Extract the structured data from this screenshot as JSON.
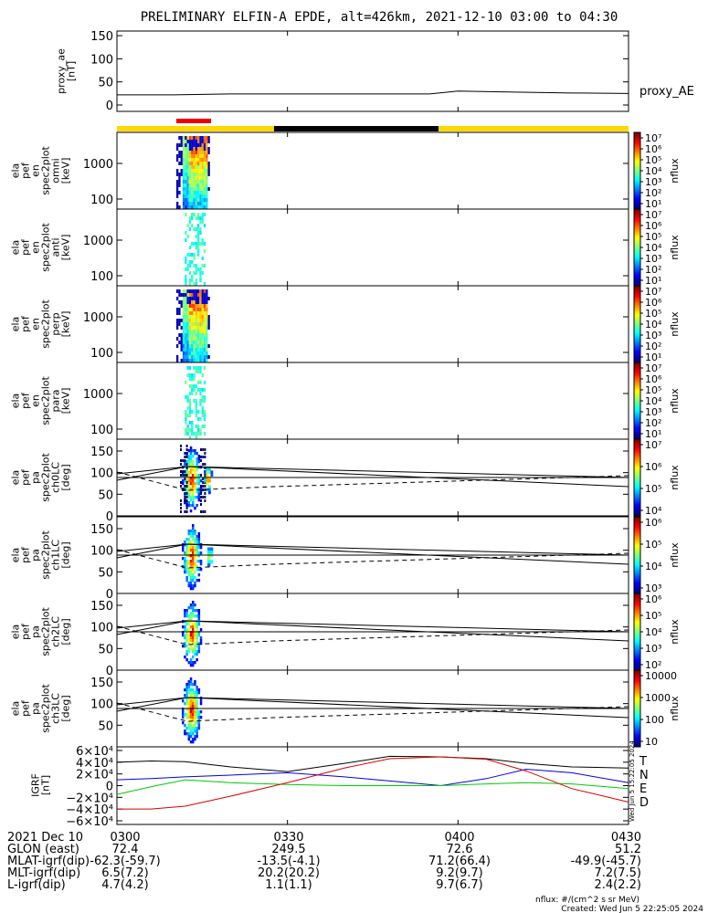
{
  "title": "PRELIMINARY ELFIN-A EPDE, alt=426km, 2021-12-10 03:00 to 04:30",
  "colors": {
    "bar_yellow": "#ffd800",
    "bar_black": "#000000",
    "bar_red": "#ee0000",
    "grf_T": "#000000",
    "grf_N": "#0000dd",
    "grf_E": "#00cc00",
    "grf_D": "#dd0000"
  },
  "ae_panel": {
    "ylabel_lines": [
      "proxy_ae",
      "[nT]"
    ],
    "yticks": [
      "150",
      "100",
      "50",
      "0"
    ],
    "series_label": "proxy_AE"
  },
  "spec_panels": [
    {
      "ylabel_lines": [
        "ela",
        "pef",
        "en",
        "spec2plot",
        "omni",
        "[keV]"
      ],
      "yticks": [
        "1000",
        "100"
      ]
    },
    {
      "ylabel_lines": [
        "ela",
        "pef",
        "en",
        "spec2plot",
        "anti",
        "[keV]"
      ],
      "yticks": [
        "1000",
        "100"
      ]
    },
    {
      "ylabel_lines": [
        "ela",
        "pef",
        "en",
        "spec2plot",
        "perp",
        "[keV]"
      ],
      "yticks": [
        "1000",
        "100"
      ]
    },
    {
      "ylabel_lines": [
        "ela",
        "pef",
        "en",
        "spec2plot",
        "para",
        "[keV]"
      ],
      "yticks": [
        "1000",
        "100"
      ]
    }
  ],
  "pa_panels": [
    {
      "ylabel_lines": [
        "ela",
        "pef",
        "pa",
        "spec2plot",
        "ch0LC",
        "[deg]"
      ],
      "yticks": [
        "150",
        "100",
        "50",
        "0"
      ]
    },
    {
      "ylabel_lines": [
        "ela",
        "pef",
        "pa",
        "spec2plot",
        "ch1LC",
        "[deg]"
      ],
      "yticks": [
        "150",
        "100",
        "50",
        "0"
      ]
    },
    {
      "ylabel_lines": [
        "ela",
        "pef",
        "pa",
        "spec2plot",
        "ch2LC",
        "[deg]"
      ],
      "yticks": [
        "150",
        "100",
        "50",
        "0"
      ]
    },
    {
      "ylabel_lines": [
        "ela",
        "pef",
        "pa",
        "spec2plot",
        "ch3LC",
        "[deg]"
      ],
      "yticks": [
        "150",
        "100",
        "50"
      ]
    }
  ],
  "colorbars": [
    {
      "label": "nflux",
      "ticks": [
        "10⁷",
        "10⁶",
        "10⁵",
        "10⁴",
        "10³",
        "10²",
        "10¹"
      ]
    },
    {
      "label": "nflux",
      "ticks": [
        "10⁷",
        "10⁶",
        "10⁵",
        "10⁴",
        "10³",
        "10²",
        "10¹"
      ]
    },
    {
      "label": "nflux",
      "ticks": [
        "10⁷",
        "10⁶",
        "10⁵",
        "10⁴",
        "10³",
        "10²",
        "10¹"
      ]
    },
    {
      "label": "nflux",
      "ticks": [
        "10⁷",
        "10⁶",
        "10⁵",
        "10⁴",
        "10³",
        "10²",
        "10¹"
      ]
    },
    {
      "label": "nflux",
      "ticks": [
        "10⁷",
        "10⁶",
        "10⁵",
        "10⁴"
      ]
    },
    {
      "label": "nflux",
      "ticks": [
        "10⁶",
        "10⁵",
        "10⁴",
        "10³"
      ]
    },
    {
      "label": "nflux",
      "ticks": [
        "10⁶",
        "10⁵",
        "10⁴",
        "10³",
        "10²"
      ]
    },
    {
      "label": "nflux",
      "ticks": [
        "10000",
        "1000",
        "100",
        "10"
      ]
    }
  ],
  "grf_panel": {
    "ylabel_lines": [
      "IGRF",
      "[nT]"
    ],
    "yticks": [
      "6×10⁴",
      "4×10⁴",
      "2×10⁴",
      "0",
      "−2×10⁴",
      "−4×10⁴",
      "−6×10⁴"
    ],
    "legend": [
      "T",
      "N",
      "E",
      "D"
    ],
    "side_note": "Wed Jun 5 15:22:05 2024"
  },
  "footer": {
    "rows": [
      [
        "2021 Dec 10",
        "0300",
        "0330",
        "0400",
        "0430"
      ],
      [
        "GLON (east)",
        "72.4",
        "249.5",
        "72.6",
        "51.2"
      ],
      [
        "MLAT-igrf(dip)",
        "-62.3(-59.7)",
        "-13.5(-4.1)",
        "71.2(66.4)",
        "-49.9(-45.7)"
      ],
      [
        "MLT-igrf(dip)",
        "6.5(7.2)",
        "20.2(20.2)",
        "9.2(9.7)",
        "7.2(7.5)"
      ],
      [
        "L-igrf(dip)",
        "4.7(4.2)",
        "1.1(1.1)",
        "9.7(6.7)",
        "2.4(2.2)"
      ]
    ],
    "nflux_note": "nflux: #/(cm^2 s sr MeV)",
    "created": "Created: Wed Jun  5 22:25:05 2024"
  },
  "chart_data": {
    "type": "line",
    "title": "PRELIMINARY ELFIN-A EPDE, alt=426km, 2021-12-10 03:00 to 04:30",
    "x_range": [
      "03:00",
      "04:30"
    ],
    "proxy_ae": {
      "ylim": [
        0,
        160
      ],
      "x": [
        "03:00",
        "03:10",
        "03:20",
        "03:30",
        "03:45",
        "03:55",
        "04:00",
        "04:10",
        "04:20",
        "04:30"
      ],
      "y": [
        22,
        22,
        24,
        24,
        24,
        24,
        30,
        28,
        26,
        25
      ]
    },
    "igrf": {
      "ylim": [
        -60000,
        60000
      ],
      "x": [
        "03:00",
        "03:06",
        "03:12",
        "03:20",
        "03:30",
        "03:40",
        "03:48",
        "03:57",
        "04:05",
        "04:12",
        "04:20",
        "04:30"
      ],
      "series": [
        {
          "name": "T",
          "values": [
            40000,
            42000,
            41000,
            32000,
            24000,
            38000,
            50000,
            49000,
            46000,
            38000,
            32000,
            30000
          ]
        },
        {
          "name": "N",
          "values": [
            10000,
            12000,
            15000,
            18000,
            22000,
            15000,
            8000,
            0,
            12000,
            28000,
            22000,
            5000
          ]
        },
        {
          "name": "E",
          "values": [
            -15000,
            -2000,
            10000,
            5000,
            2000,
            0,
            0,
            0,
            3000,
            5000,
            3000,
            -5000
          ]
        },
        {
          "name": "D",
          "values": [
            -40000,
            -40000,
            -35000,
            -18000,
            5000,
            30000,
            46000,
            49000,
            45000,
            25000,
            -5000,
            -28000
          ]
        }
      ]
    }
  }
}
